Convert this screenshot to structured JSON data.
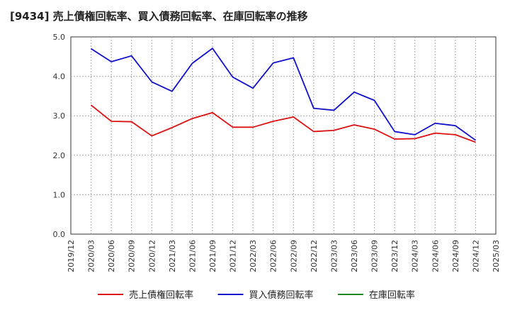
{
  "chart_data": {
    "type": "line",
    "title": "[9434]  売上債権回転率、買入債務回転率、在庫回転率の推移",
    "xlabel": "",
    "ylabel": "",
    "ylim": [
      0,
      5
    ],
    "yticks": [
      "0.0",
      "1.0",
      "2.0",
      "3.0",
      "4.0",
      "5.0"
    ],
    "x_ticks": [
      "2019/12",
      "2020/03",
      "2020/06",
      "2020/09",
      "2020/12",
      "2021/03",
      "2021/06",
      "2021/09",
      "2021/12",
      "2022/03",
      "2022/06",
      "2022/09",
      "2022/12",
      "2023/03",
      "2023/06",
      "2023/09",
      "2023/12",
      "2024/03",
      "2024/06",
      "2024/09",
      "2024/12",
      "2025/03"
    ],
    "grid": true,
    "legend_position": "bottom",
    "series": [
      {
        "name": "売上債権回転率",
        "color": "#dd1111",
        "points": [
          [
            "2020/03",
            3.27
          ],
          [
            "2020/06",
            2.86
          ],
          [
            "2020/09",
            2.85
          ],
          [
            "2020/12",
            2.49
          ],
          [
            "2021/03",
            2.7
          ],
          [
            "2021/06",
            2.93
          ],
          [
            "2021/09",
            3.08
          ],
          [
            "2021/12",
            2.71
          ],
          [
            "2022/03",
            2.71
          ],
          [
            "2022/06",
            2.86
          ],
          [
            "2022/09",
            2.97
          ],
          [
            "2022/12",
            2.6
          ],
          [
            "2023/03",
            2.63
          ],
          [
            "2023/06",
            2.77
          ],
          [
            "2023/09",
            2.66
          ],
          [
            "2023/12",
            2.41
          ],
          [
            "2024/03",
            2.42
          ],
          [
            "2024/06",
            2.56
          ],
          [
            "2024/09",
            2.52
          ],
          [
            "2024/12",
            2.33
          ]
        ]
      },
      {
        "name": "買入債務回転率",
        "color": "#1111cc",
        "points": [
          [
            "2020/03",
            4.7
          ],
          [
            "2020/06",
            4.37
          ],
          [
            "2020/09",
            4.52
          ],
          [
            "2020/12",
            3.86
          ],
          [
            "2021/03",
            3.62
          ],
          [
            "2021/06",
            4.33
          ],
          [
            "2021/09",
            4.71
          ],
          [
            "2021/12",
            3.98
          ],
          [
            "2022/03",
            3.7
          ],
          [
            "2022/06",
            4.34
          ],
          [
            "2022/09",
            4.47
          ],
          [
            "2022/12",
            3.19
          ],
          [
            "2023/03",
            3.14
          ],
          [
            "2023/06",
            3.6
          ],
          [
            "2023/09",
            3.39
          ],
          [
            "2023/12",
            2.6
          ],
          [
            "2024/03",
            2.52
          ],
          [
            "2024/06",
            2.81
          ],
          [
            "2024/09",
            2.75
          ],
          [
            "2024/12",
            2.38
          ]
        ]
      },
      {
        "name": "在庫回転率",
        "color": "#228822",
        "points": []
      }
    ]
  }
}
